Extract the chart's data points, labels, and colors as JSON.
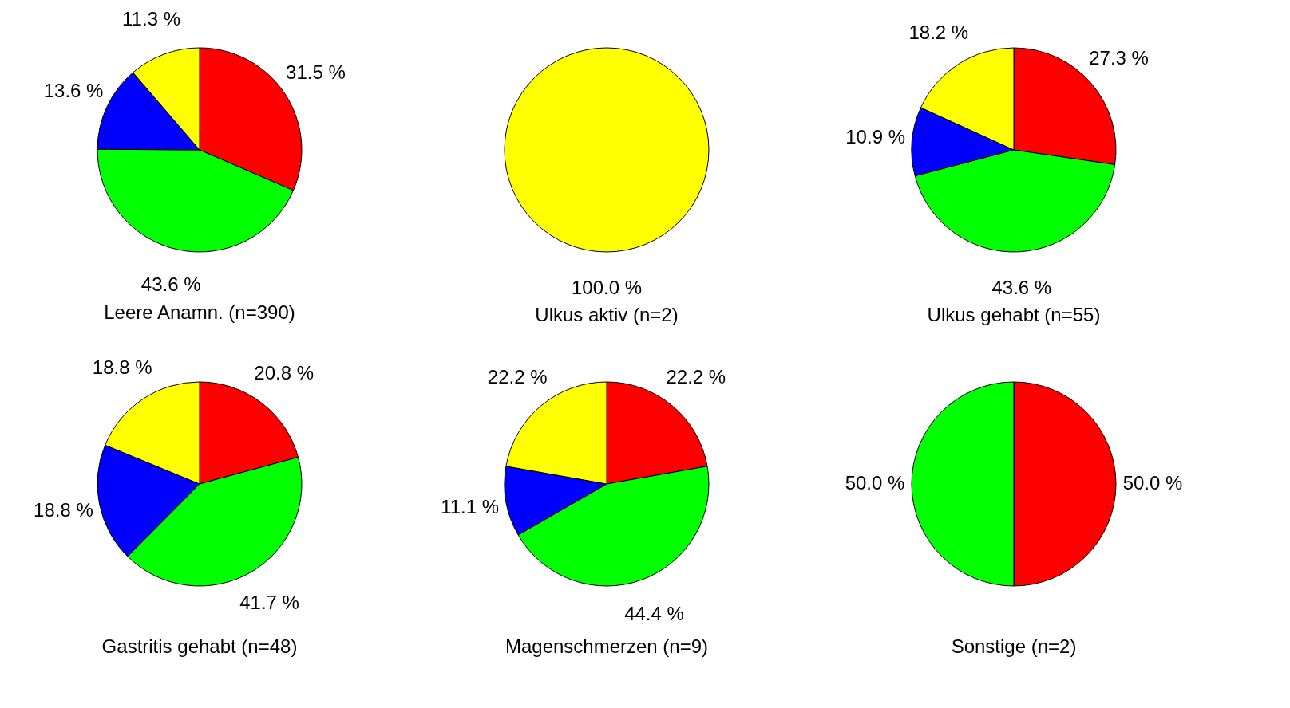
{
  "chart_data": [
    {
      "type": "pie",
      "title": "Leere Anamn. (n=390)",
      "categories": [
        null,
        null,
        null,
        null
      ],
      "values": [
        31.5,
        43.6,
        13.6,
        11.3
      ],
      "colors": [
        "#ff0000",
        "#00ff00",
        "#0000ff",
        "#ffff00"
      ],
      "value_labels": [
        "31.5 %",
        "43.6 %",
        "13.6 %",
        "11.3 %"
      ]
    },
    {
      "type": "pie",
      "title": "Ulkus aktiv (n=2)",
      "categories": [
        null
      ],
      "values": [
        100.0
      ],
      "colors": [
        "#ffff00"
      ],
      "value_labels": [
        "100.0 %"
      ]
    },
    {
      "type": "pie",
      "title": "Ulkus gehabt (n=55)",
      "categories": [
        null,
        null,
        null,
        null
      ],
      "values": [
        27.3,
        43.6,
        10.9,
        18.2
      ],
      "colors": [
        "#ff0000",
        "#00ff00",
        "#0000ff",
        "#ffff00"
      ],
      "value_labels": [
        "27.3 %",
        "43.6 %",
        "10.9 %",
        "18.2 %"
      ]
    },
    {
      "type": "pie",
      "title": "Gastritis gehabt (n=48)",
      "categories": [
        null,
        null,
        null,
        null
      ],
      "values": [
        20.8,
        41.7,
        18.8,
        18.8
      ],
      "colors": [
        "#ff0000",
        "#00ff00",
        "#0000ff",
        "#ffff00"
      ],
      "value_labels": [
        "20.8 %",
        "41.7 %",
        "18.8 %",
        "18.8 %"
      ]
    },
    {
      "type": "pie",
      "title": "Magenschmerzen (n=9)",
      "categories": [
        null,
        null,
        null,
        null
      ],
      "values": [
        22.2,
        44.4,
        11.1,
        22.2
      ],
      "colors": [
        "#ff0000",
        "#00ff00",
        "#0000ff",
        "#ffff00"
      ],
      "value_labels": [
        "22.2 %",
        "44.4 %",
        "11.1 %",
        "22.2 %"
      ]
    },
    {
      "type": "pie",
      "title": "Sonstige (n=2)",
      "categories": [
        null,
        null
      ],
      "values": [
        50.0,
        50.0
      ],
      "colors": [
        "#ff0000",
        "#00ff00"
      ],
      "value_labels": [
        "50.0 %",
        "50.0 %"
      ]
    }
  ]
}
